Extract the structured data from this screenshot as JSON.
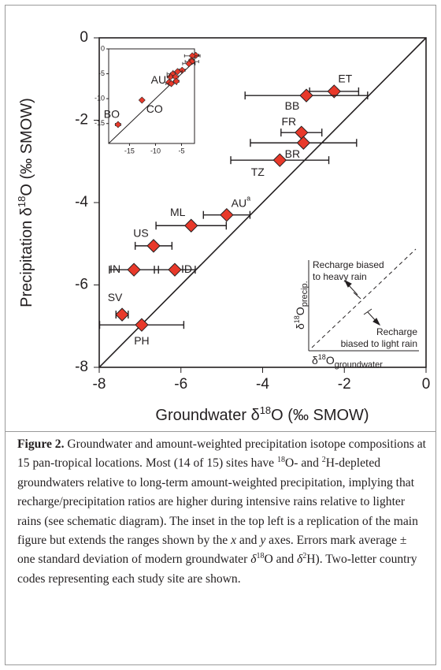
{
  "chart_data": [
    {
      "type": "scatter",
      "x_label": [
        "Groundwater δ",
        "18",
        "O (‰ SMOW)"
      ],
      "y_label": [
        "Precipitation δ",
        "18",
        "O (‰ SMOW)"
      ],
      "xlim": [
        -8,
        0
      ],
      "ylim": [
        -8,
        0
      ],
      "xticks": [
        -8,
        -6,
        -4,
        -2,
        0
      ],
      "yticks": [
        -8,
        -6,
        -4,
        -2,
        0
      ],
      "color": "#e8392a",
      "labels": [
        "ET",
        "BB",
        "FR",
        "BR",
        "TZ",
        {
          "base": "AU",
          "superscript": "a"
        },
        "ML",
        "US",
        "IN",
        "ID",
        "SV",
        "PH"
      ],
      "x": [
        -2.25,
        -2.93,
        -3.05,
        -3.0,
        -3.58,
        -4.88,
        -5.75,
        -6.67,
        -7.15,
        -6.15,
        -7.44,
        -6.96
      ],
      "values": [
        -1.3,
        -1.4,
        -2.3,
        -2.55,
        -2.97,
        -4.3,
        -4.56,
        -5.05,
        -5.63,
        -5.63,
        -6.72,
        -6.97
      ],
      "x_errors": [
        0.6,
        1.5,
        0.5,
        1.3,
        1.2,
        0.57,
        0.86,
        0.45,
        0.6,
        0.5,
        0.15,
        1.03
      ]
    },
    {
      "type": "scatter",
      "xlim": [
        -19,
        -2.5
      ],
      "ylim": [
        -19,
        0
      ],
      "xticks": [
        -15,
        -10,
        -5
      ],
      "yticks": [
        0,
        -5,
        -10,
        -15
      ],
      "color": "#e8392a",
      "labels": [
        null,
        null,
        null,
        null,
        null,
        null,
        null,
        null,
        null,
        null,
        null,
        null,
        {
          "base": "AU",
          "superscript": "b"
        },
        "CO",
        "BO"
      ],
      "x": [
        -2.25,
        -2.93,
        -3.05,
        -3.0,
        -3.58,
        -4.88,
        -5.75,
        -6.67,
        -7.15,
        -6.15,
        -7.44,
        -6.96,
        -6.0,
        -12.6,
        -17.2
      ],
      "values": [
        -1.3,
        -1.4,
        -2.3,
        -2.55,
        -2.97,
        -4.3,
        -4.56,
        -5.05,
        -5.63,
        -5.63,
        -6.72,
        -6.97,
        -6.5,
        -10.3,
        -15.2
      ],
      "x_errors": [
        0.6,
        1.5,
        0.5,
        1.3,
        1.2,
        0.57,
        0.86,
        0.45,
        0.6,
        0.5,
        0.15,
        1.03,
        0.5,
        0.3,
        0.5
      ]
    }
  ],
  "schematic": {
    "upper_note": [
      "Recharge biased",
      "to heavy rain"
    ],
    "lower_note": [
      "Recharge",
      "biased to light rain"
    ],
    "y_label": [
      "δ",
      "18",
      "O",
      "precip."
    ],
    "x_label": [
      "δ",
      "18",
      "O",
      "groundwater"
    ]
  },
  "caption": {
    "label": "Figure 2.",
    "runs": [
      "Groundwater and amount-weighted precipitation isotope compositions at 15 pan-tropical locations. Most (14 of 15) sites have ",
      "18",
      "O- and ",
      "2",
      "H-depleted groundwaters relative to long-term amount-weighted precipitation, implying that recharge/precipitation ratios are higher during intensive rains relative to lighter rains (see schematic diagram). The inset in the top left is a replication of the main figure but extends the ranges shown by the ",
      "x",
      " and ",
      "y",
      " axes. Errors mark average ± one standard deviation of modern groundwater ",
      "δ",
      "18",
      "O and ",
      "δ",
      "2",
      "H). Two-letter country codes representing each study site are shown."
    ]
  }
}
